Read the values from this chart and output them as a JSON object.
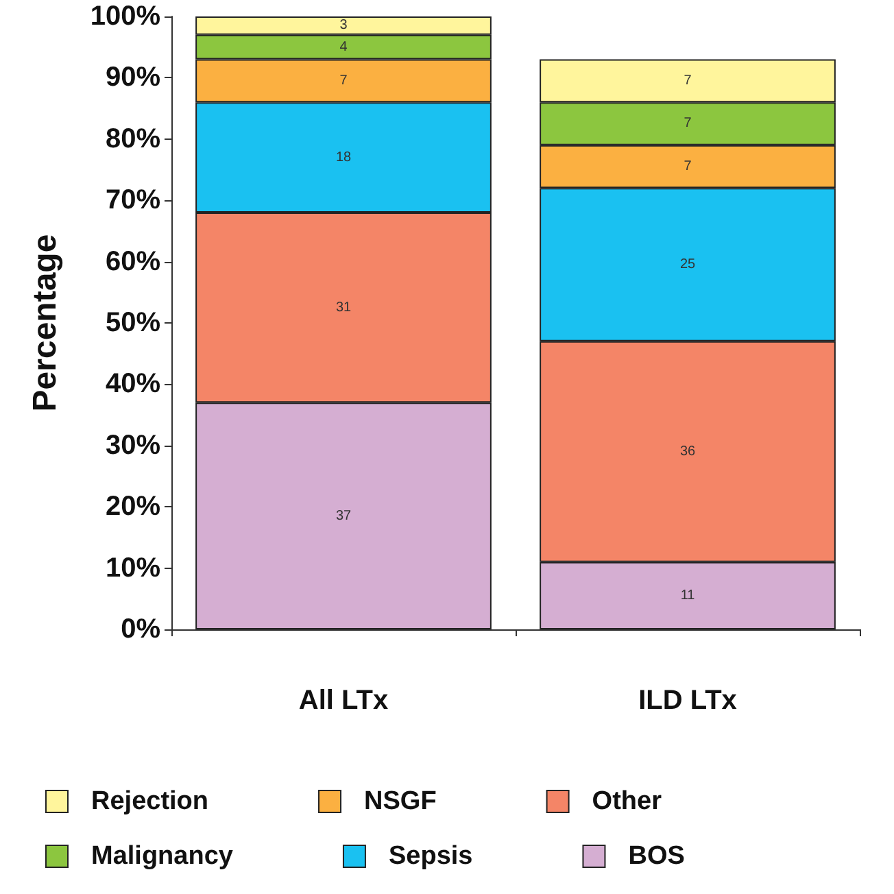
{
  "chart_data": {
    "type": "bar",
    "stacked": true,
    "ylabel": "Percentage",
    "categories": [
      "All LTx",
      "ILD LTx"
    ],
    "series": [
      {
        "name": "BOS",
        "color": "#d5aed2",
        "values": [
          37,
          11
        ]
      },
      {
        "name": "Other",
        "color": "#f48567",
        "values": [
          31,
          36
        ]
      },
      {
        "name": "Sepsis",
        "color": "#1ac1f1",
        "values": [
          18,
          25
        ]
      },
      {
        "name": "NSGF",
        "color": "#fbb041",
        "values": [
          7,
          7
        ]
      },
      {
        "name": "Malignancy",
        "color": "#8cc63f",
        "values": [
          4,
          7
        ]
      },
      {
        "name": "Rejection",
        "color": "#fff59c",
        "values": [
          3,
          7
        ]
      }
    ],
    "ylim": [
      0,
      100
    ],
    "yticks": [
      {
        "value": 0,
        "label": "0%"
      },
      {
        "value": 10,
        "label": "10%"
      },
      {
        "value": 20,
        "label": "20%"
      },
      {
        "value": 30,
        "label": "30%"
      },
      {
        "value": 40,
        "label": "40%"
      },
      {
        "value": 50,
        "label": "50%"
      },
      {
        "value": 60,
        "label": "60%"
      },
      {
        "value": 70,
        "label": "70%"
      },
      {
        "value": 80,
        "label": "80%"
      },
      {
        "value": 90,
        "label": "90%"
      },
      {
        "value": 100,
        "label": "100%"
      }
    ],
    "data_labels": true,
    "grid": false,
    "legend": "bottom"
  }
}
